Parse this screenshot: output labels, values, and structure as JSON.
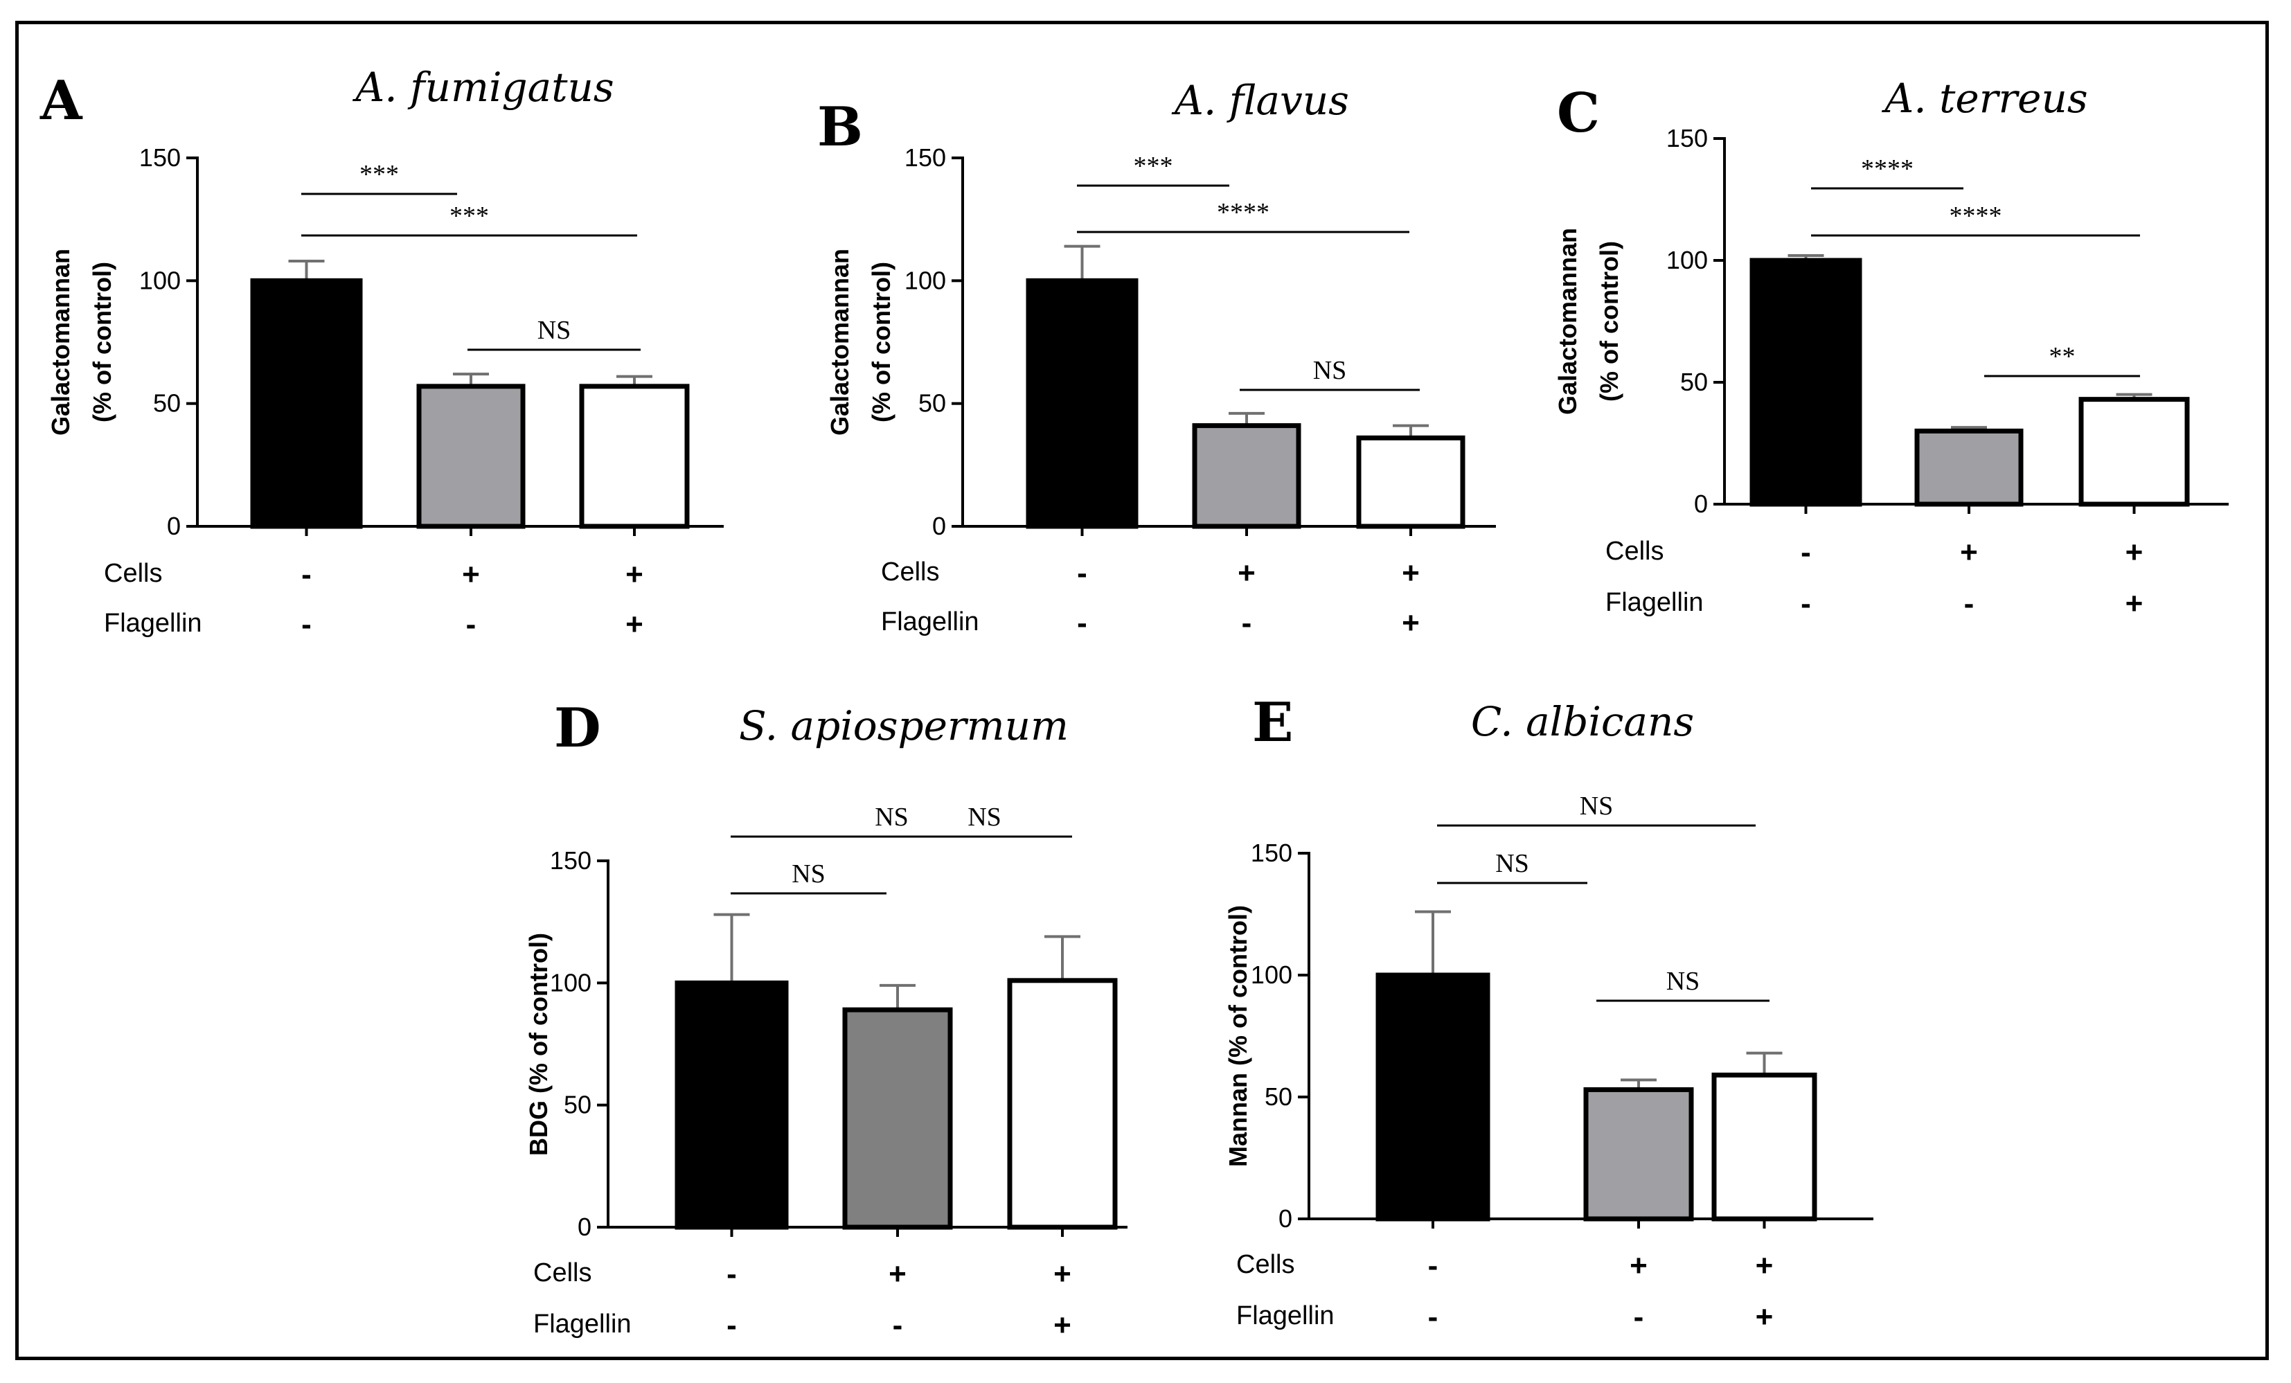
{
  "colors": {
    "control": "#000000",
    "cells": "#a0a0a4",
    "cells_dark": "#808080",
    "cells_flagellin": "#ffffff",
    "error": "#707070"
  },
  "chart_data": [
    {
      "id": "A",
      "letter": "A",
      "type": "bar",
      "title": "A. fumigatus",
      "ylabel_lines": [
        "Galactomannan",
        "(% of control)"
      ],
      "ylim": [
        0,
        150
      ],
      "yticks": [
        "0",
        "50",
        "100",
        "150"
      ],
      "values": [
        100,
        57,
        57
      ],
      "errors": [
        8,
        5,
        4
      ],
      "row_labels": [
        "Cells",
        "Flagellin"
      ],
      "treatments": [
        [
          "-",
          "+",
          "+"
        ],
        [
          "-",
          "-",
          "+"
        ]
      ],
      "comparisons": [
        {
          "from": 0,
          "to": 1,
          "label": "***"
        },
        {
          "from": 0,
          "to": 2,
          "label": "***"
        },
        {
          "from": 1,
          "to": 2,
          "label": "NS"
        }
      ]
    },
    {
      "id": "B",
      "letter": "B",
      "type": "bar",
      "title": "A. flavus",
      "ylabel_lines": [
        "Galactomannan",
        "(% of control)"
      ],
      "ylim": [
        0,
        150
      ],
      "yticks": [
        "0",
        "50",
        "100",
        "150"
      ],
      "values": [
        100,
        41,
        36
      ],
      "errors": [
        14,
        5,
        5
      ],
      "row_labels": [
        "Cells",
        "Flagellin"
      ],
      "treatments": [
        [
          "-",
          "+",
          "+"
        ],
        [
          "-",
          "-",
          "+"
        ]
      ],
      "comparisons": [
        {
          "from": 0,
          "to": 1,
          "label": "***"
        },
        {
          "from": 0,
          "to": 2,
          "label": "****"
        },
        {
          "from": 1,
          "to": 2,
          "label": "NS"
        }
      ]
    },
    {
      "id": "C",
      "letter": "C",
      "type": "bar",
      "title": "A. terreus",
      "ylabel_lines": [
        "Galactomannan",
        "(% of control)"
      ],
      "ylim": [
        0,
        150
      ],
      "yticks": [
        "0",
        "50",
        "100",
        "150"
      ],
      "values": [
        100,
        30,
        43
      ],
      "errors": [
        2,
        1.5,
        2
      ],
      "row_labels": [
        "Cells",
        "Flagellin"
      ],
      "treatments": [
        [
          "-",
          "+",
          "+"
        ],
        [
          "-",
          "-",
          "+"
        ]
      ],
      "comparisons": [
        {
          "from": 0,
          "to": 1,
          "label": "****"
        },
        {
          "from": 0,
          "to": 2,
          "label": "****"
        },
        {
          "from": 1,
          "to": 2,
          "label": "**"
        }
      ]
    },
    {
      "id": "D",
      "letter": "D",
      "type": "bar",
      "title": "S. apiospermum",
      "ylabel_lines": [
        "BDG (% of control)"
      ],
      "ylim": [
        0,
        150
      ],
      "yticks": [
        "0",
        "50",
        "100",
        "150"
      ],
      "values": [
        100,
        89,
        101
      ],
      "errors": [
        28,
        10,
        18
      ],
      "row_labels": [
        "Cells",
        "Flagellin"
      ],
      "treatments": [
        [
          "-",
          "+",
          "+"
        ],
        [
          "-",
          "-",
          "+"
        ]
      ],
      "comparisons": [
        {
          "from": 0,
          "to": 1,
          "label": "NS"
        },
        {
          "from": 0,
          "to": 2,
          "label": "NS"
        },
        {
          "from": 1,
          "to": 2,
          "label": "NS"
        }
      ]
    },
    {
      "id": "E",
      "letter": "E",
      "type": "bar",
      "title": "C. albicans",
      "ylabel_lines": [
        "Mannan (% of control)"
      ],
      "ylim": [
        0,
        150
      ],
      "yticks": [
        "0",
        "50",
        "100",
        "150"
      ],
      "values": [
        100,
        53,
        59
      ],
      "errors": [
        26,
        4,
        9
      ],
      "row_labels": [
        "Cells",
        "Flagellin"
      ],
      "treatments": [
        [
          "-",
          "+",
          "+"
        ],
        [
          "-",
          "-",
          "+"
        ]
      ],
      "comparisons": [
        {
          "from": 0,
          "to": 1,
          "label": "NS"
        },
        {
          "from": 0,
          "to": 2,
          "label": "NS"
        },
        {
          "from": 1,
          "to": 2,
          "label": "NS"
        }
      ]
    }
  ]
}
